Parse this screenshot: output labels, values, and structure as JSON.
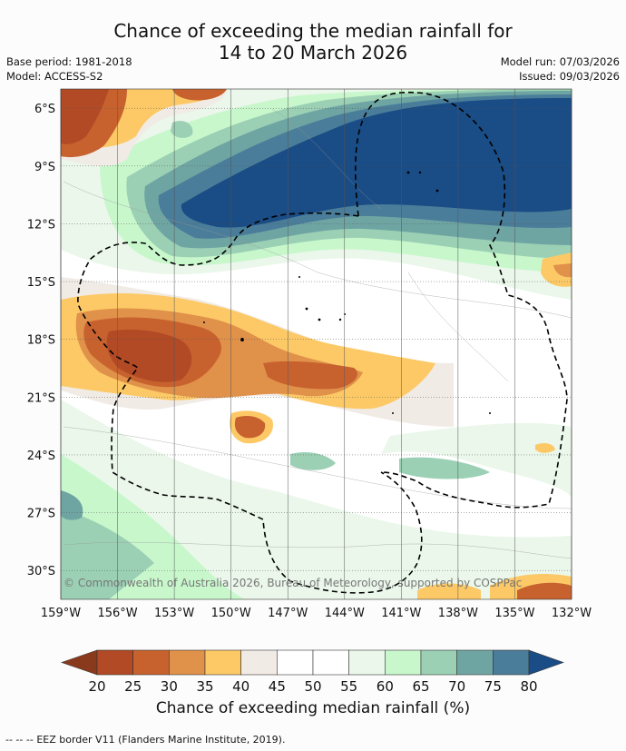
{
  "header": {
    "title_line1": "Chance of exceeding the median rainfall for",
    "title_line2": "14 to 20 March 2026",
    "base_period": "Base period: 1981-2018",
    "model": "Model: ACCESS-S2",
    "model_run": "Model run: 07/03/2026",
    "issued": "Issued: 09/03/2026"
  },
  "map": {
    "copyright": "© Commonwealth of Australia 2026, Bureau of Meteorology, supported by COSPPac",
    "lat_labels": [
      "6°S",
      "9°S",
      "12°S",
      "15°S",
      "18°S",
      "21°S",
      "24°S",
      "27°S",
      "30°S"
    ],
    "lon_labels": [
      "159°W",
      "156°W",
      "153°W",
      "150°W",
      "147°W",
      "144°W",
      "141°W",
      "138°W",
      "135°W",
      "132°W"
    ],
    "lat_range": [
      -5,
      -31.5
    ],
    "lon_range": [
      -159,
      -132
    ]
  },
  "colorbar": {
    "ticks": [
      "20",
      "25",
      "30",
      "35",
      "40",
      "45",
      "50",
      "55",
      "60",
      "65",
      "70",
      "75",
      "80"
    ],
    "colors": [
      "#b14a25",
      "#c7622f",
      "#e0914a",
      "#fcc966",
      "#f1ebe6",
      "#ffffff",
      "#ffffff",
      "#eaf7ea",
      "#c8f7cc",
      "#9bd0b4",
      "#6ea5a3",
      "#4a7d99"
    ],
    "low_color": "#8a3a1c",
    "high_color": "#1a4c85",
    "title": "Chance of exceeding median rainfall (%)"
  },
  "footer": {
    "legend_symbol": "-- -- --",
    "text": "EEZ border V11 (Flanders Marine Institute, 2019)."
  }
}
